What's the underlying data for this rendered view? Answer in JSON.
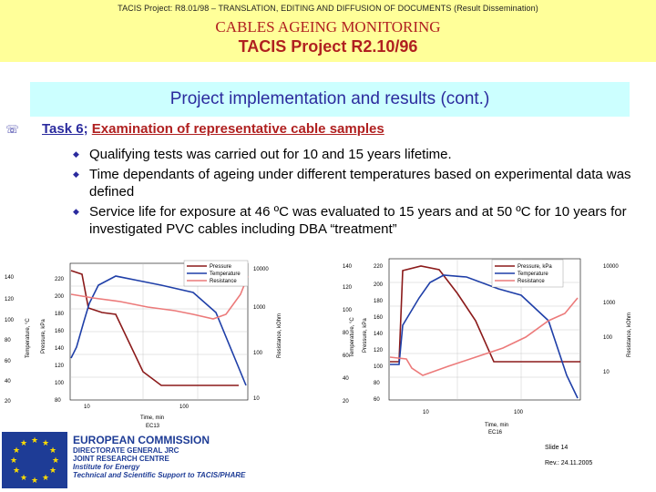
{
  "header": {
    "top_line": "TACIS Project: R8.01/98 – TRANSLATION, EDITING AND DIFFUSION OF DOCUMENTS (Result Dissemination)",
    "title1": "CABLES AGEING MONITORING",
    "title2": "TACIS Project R2.10/96"
  },
  "section_title": "Project implementation and results (cont.)",
  "task": {
    "number": "Task 6",
    "separator": ";",
    "text": "Examination of representative cable samples"
  },
  "bullets": [
    "Qualifying tests was carried out for 10 and 15 years lifetime.",
    "Time dependants of ageing under different temperatures based on experimental data was defined",
    "Service life for exposure at 46 ºC was evaluated to 15 years and at 50 ºC for 10 years for investigated PVC cables including DBA “treatment”"
  ],
  "colors": {
    "pressure": "#8b1a1a",
    "temperature": "#1f3fa8",
    "resistance": "#ec7a7a",
    "accent": "#2b2b9e",
    "header_bg": "#ffff99",
    "title_bg": "#ccffff"
  },
  "chart_data": [
    {
      "type": "line",
      "legend": [
        "Pressure",
        "Temperature",
        "Resistance"
      ],
      "xlabel": "Time, min",
      "x_ticks": [
        "10",
        "100"
      ],
      "y_temp_label": "Temperature, °C",
      "y_temp_ticks": [
        "20",
        "40",
        "60",
        "80",
        "100",
        "120",
        "140"
      ],
      "y_pressure_label": "Pressure, kPa",
      "y_pressure_ticks": [
        "80",
        "100",
        "120",
        "140",
        "160",
        "180",
        "200",
        "220"
      ],
      "y_res_label": "Resistance, kOhm",
      "y_res_ticks": [
        "10",
        "100",
        "1000",
        "10000"
      ],
      "caption": "EC13"
    },
    {
      "type": "line",
      "legend": [
        "Pressure, kPa",
        "Temperature",
        "Resistance"
      ],
      "xlabel": "Time, min",
      "x_ticks": [
        "10",
        "100"
      ],
      "y_temp_label": "Temperature, °C",
      "y_temp_ticks": [
        "20",
        "40",
        "60",
        "80",
        "100",
        "120",
        "140"
      ],
      "y_pressure_label": "Pressure, kPa",
      "y_pressure_ticks": [
        "60",
        "80",
        "100",
        "120",
        "140",
        "160",
        "180",
        "200",
        "220"
      ],
      "y_res_label": "Resistance, kOhm",
      "y_res_ticks": [
        "10",
        "100",
        "1000",
        "10000"
      ],
      "caption": "EC16"
    }
  ],
  "footer": {
    "org1": "EUROPEAN COMMISSION",
    "org2": "DIRECTORATE GENERAL JRC",
    "org3": "JOINT RESEARCH CENTRE",
    "org4": "Institute for Energy",
    "org5": "Technical and Scientific Support to TACIS/PHARE",
    "slide": "Slide 14",
    "rev": "Rev.: 24.11.2005"
  }
}
